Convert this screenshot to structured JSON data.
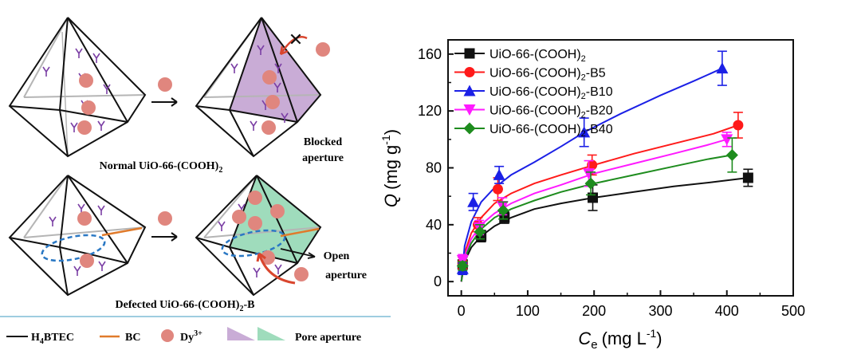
{
  "schematic": {
    "label_normal": "Normal UiO-66-(COOH)",
    "label_normal_sub": "2",
    "label_defected": "Defected UiO-66-(COOH)",
    "label_defected_sub": "2",
    "label_defected_suffix": "-B",
    "label_blocked_1": "Blocked",
    "label_blocked_2": "aperture",
    "label_open_1": "Open",
    "label_open_2": "aperture",
    "blocked_mark": "✕",
    "colors": {
      "frame": "#111111",
      "inner_line": "#b5b5b5",
      "linker": "#7b3fa5",
      "ion": "#e0867e",
      "blocked_face": "#c9acd6",
      "open_face": "#9fdcbc",
      "bc_line": "#e07b2c",
      "ellipse": "#2a78c4",
      "arrow": "#d9462e",
      "separator": "#9fcde0"
    }
  },
  "legend_bottom": {
    "h4btec": "H",
    "h4btec_sub": "4",
    "h4btec_suffix": "BTEC",
    "bc": "BC",
    "dy": "Dy",
    "dy_sup": "3+",
    "pore": "Pore aperture"
  },
  "chart_data": {
    "type": "scatter",
    "xlabel": "C",
    "xlabel_sub": "e",
    "xlabel_unit": "(mg L",
    "xlabel_unit_sup": "-1",
    "xlabel_unit_end": ")",
    "ylabel": "Q",
    "ylabel_unit": "(mg g",
    "ylabel_unit_sup": "-1",
    "ylabel_unit_end": ")",
    "xlim": [
      -20,
      500
    ],
    "ylim": [
      -10,
      170
    ],
    "xticks": [
      0,
      100,
      200,
      300,
      400,
      500
    ],
    "yticks": [
      0,
      40,
      80,
      120,
      160
    ],
    "grid": false,
    "legend_position": "top-left",
    "series": [
      {
        "name": "UiO-66-(COOH)",
        "name_sub": "2",
        "name_suffix": "",
        "color": "#111111",
        "marker": "square",
        "points": [
          {
            "x": 2,
            "y": 12,
            "err": 3
          },
          {
            "x": 30,
            "y": 32,
            "err": 4
          },
          {
            "x": 65,
            "y": 45,
            "err": 4
          },
          {
            "x": 198,
            "y": 59,
            "err": 9
          },
          {
            "x": 432,
            "y": 73,
            "err": 6
          }
        ],
        "fit": [
          [
            0,
            0
          ],
          [
            5,
            14
          ],
          [
            15,
            24
          ],
          [
            30,
            32
          ],
          [
            50,
            39
          ],
          [
            75,
            45
          ],
          [
            110,
            51
          ],
          [
            150,
            55
          ],
          [
            200,
            59
          ],
          [
            260,
            63
          ],
          [
            320,
            67
          ],
          [
            380,
            70
          ],
          [
            432,
            73
          ]
        ]
      },
      {
        "name": "UiO-66-(COOH)",
        "name_sub": "2",
        "name_suffix": "-B5",
        "color": "#ff1a1a",
        "marker": "circle",
        "points": [
          {
            "x": 2,
            "y": 13,
            "err": 4
          },
          {
            "x": 25,
            "y": 40,
            "err": 5
          },
          {
            "x": 55,
            "y": 65,
            "err": 8
          },
          {
            "x": 197,
            "y": 82,
            "err": 7
          },
          {
            "x": 417,
            "y": 110,
            "err": 9
          }
        ],
        "fit": [
          [
            0,
            0
          ],
          [
            5,
            20
          ],
          [
            15,
            34
          ],
          [
            30,
            45
          ],
          [
            50,
            55
          ],
          [
            75,
            62
          ],
          [
            110,
            69
          ],
          [
            150,
            75
          ],
          [
            200,
            82
          ],
          [
            260,
            90
          ],
          [
            320,
            97
          ],
          [
            380,
            104
          ],
          [
            417,
            110
          ]
        ]
      },
      {
        "name": "UiO-66-(COOH)",
        "name_sub": "2",
        "name_suffix": "-B10",
        "color": "#1b20e6",
        "marker": "triangle-up",
        "points": [
          {
            "x": 2,
            "y": 9,
            "err": 4
          },
          {
            "x": 18,
            "y": 56,
            "err": 6
          },
          {
            "x": 57,
            "y": 75,
            "err": 6
          },
          {
            "x": 185,
            "y": 105,
            "err": 10
          },
          {
            "x": 393,
            "y": 150,
            "err": 12
          }
        ],
        "fit": [
          [
            0,
            0
          ],
          [
            5,
            25
          ],
          [
            15,
            42
          ],
          [
            30,
            56
          ],
          [
            50,
            66
          ],
          [
            75,
            75
          ],
          [
            110,
            84
          ],
          [
            150,
            95
          ],
          [
            185,
            105
          ],
          [
            240,
            118
          ],
          [
            300,
            131
          ],
          [
            350,
            141
          ],
          [
            393,
            150
          ]
        ]
      },
      {
        "name": "UiO-66-(COOH)",
        "name_sub": "2",
        "name_suffix": "-B20",
        "color": "#ff1aff",
        "marker": "triangle-down",
        "points": [
          {
            "x": 2,
            "y": 15,
            "err": 4
          },
          {
            "x": 27,
            "y": 38,
            "err": 5
          },
          {
            "x": 62,
            "y": 53,
            "err": 6
          },
          {
            "x": 192,
            "y": 76,
            "err": 9
          },
          {
            "x": 400,
            "y": 100,
            "err": 5
          }
        ],
        "fit": [
          [
            0,
            0
          ],
          [
            5,
            18
          ],
          [
            15,
            30
          ],
          [
            30,
            40
          ],
          [
            50,
            48
          ],
          [
            75,
            55
          ],
          [
            110,
            62
          ],
          [
            150,
            68
          ],
          [
            200,
            76
          ],
          [
            260,
            83
          ],
          [
            320,
            90
          ],
          [
            370,
            96
          ],
          [
            400,
            100
          ]
        ]
      },
      {
        "name": "UiO-66-(COOH)",
        "name_sub": "2",
        "name_suffix": "-B40",
        "color": "#1e8c1e",
        "marker": "diamond",
        "points": [
          {
            "x": 2,
            "y": 11,
            "err": 3
          },
          {
            "x": 28,
            "y": 35,
            "err": 5
          },
          {
            "x": 63,
            "y": 50,
            "err": 6
          },
          {
            "x": 195,
            "y": 69,
            "err": 8
          },
          {
            "x": 408,
            "y": 89,
            "err": 12
          }
        ],
        "fit": [
          [
            0,
            0
          ],
          [
            5,
            16
          ],
          [
            15,
            27
          ],
          [
            30,
            37
          ],
          [
            50,
            45
          ],
          [
            75,
            51
          ],
          [
            110,
            57
          ],
          [
            150,
            63
          ],
          [
            200,
            69
          ],
          [
            260,
            75
          ],
          [
            320,
            81
          ],
          [
            370,
            86
          ],
          [
            408,
            89
          ]
        ]
      }
    ]
  }
}
